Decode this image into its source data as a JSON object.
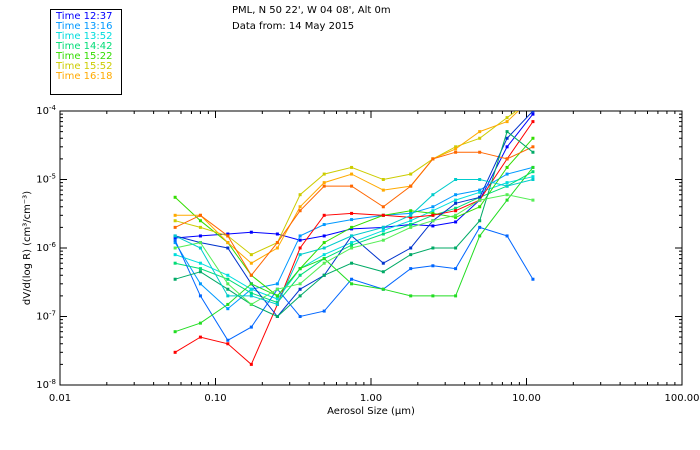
{
  "header": {
    "location": "PML, N 50 22', W 04 08', Alt 0m",
    "date_line": "Data from: 14 May 2015"
  },
  "chart_data": {
    "type": "line",
    "xscale": "log",
    "yscale": "log",
    "xlabel": "Aerosol Size (µm)",
    "ylabel": "dV/d(log R) (cm³/cm⁻³)",
    "xlim": [
      0.01,
      100
    ],
    "ylim": [
      1e-08,
      0.0001
    ],
    "x_ticks": [
      {
        "value": 0.01,
        "label": "0.01"
      },
      {
        "value": 0.1,
        "label": "0.10"
      },
      {
        "value": 1,
        "label": "1.00"
      },
      {
        "value": 10,
        "label": "10.00"
      },
      {
        "value": 100,
        "label": "100.00"
      }
    ],
    "y_ticks": [
      {
        "value": 0.0001,
        "base": "10",
        "exp": "-4"
      },
      {
        "value": 1e-05,
        "base": "10",
        "exp": "-5"
      },
      {
        "value": 1e-06,
        "base": "10",
        "exp": "-6"
      },
      {
        "value": 1e-07,
        "base": "10",
        "exp": "-7"
      },
      {
        "value": 1e-08,
        "base": "10",
        "exp": "-8"
      }
    ],
    "x": [
      0.055,
      0.08,
      0.12,
      0.17,
      0.25,
      0.35,
      0.5,
      0.75,
      1.2,
      1.8,
      2.5,
      3.5,
      5,
      7.5,
      11
    ],
    "series": [
      {
        "name": "Time 12:37",
        "color": "#0000ff",
        "values": [
          1.4e-06,
          1.5e-06,
          1.6e-06,
          1.7e-06,
          1.6e-06,
          1.3e-06,
          1.5e-06,
          1.9e-06,
          2e-06,
          2.2e-06,
          2.1e-06,
          2.4e-06,
          5e-06,
          3e-05,
          9e-05
        ]
      },
      {
        "name": "Time 13:16",
        "color": "#0099ff",
        "values": [
          1.2e-06,
          3e-07,
          1.3e-07,
          2.5e-07,
          3e-07,
          1.5e-06,
          2.2e-06,
          2.6e-06,
          3e-06,
          3.2e-06,
          4e-06,
          6e-06,
          7e-06,
          1.2e-05,
          1.5e-05
        ]
      },
      {
        "name": "Time 13:52",
        "color": "#00dddd",
        "values": [
          8e-07,
          6e-07,
          4e-07,
          2.5e-07,
          1.8e-07,
          5e-07,
          8e-07,
          1.2e-06,
          1.8e-06,
          2.5e-06,
          3.5e-06,
          5e-06,
          6.5e-06,
          9e-06,
          1.1e-05
        ]
      },
      {
        "name": "Time 14:42",
        "color": "#00dd77",
        "values": [
          6e-07,
          5e-07,
          3.5e-07,
          2.2e-07,
          1.6e-07,
          4e-07,
          7e-07,
          1.1e-06,
          1.6e-06,
          2.2e-06,
          3e-06,
          3.8e-06,
          5.5e-06,
          8e-06,
          1.3e-05
        ]
      },
      {
        "name": "Time 15:22",
        "color": "#33dd00",
        "values": [
          5.5e-06,
          2.5e-06,
          1.2e-06,
          4e-07,
          2e-07,
          5e-07,
          1.2e-06,
          2e-06,
          3e-06,
          3.5e-06,
          3.2e-06,
          2.8e-06,
          4e-06,
          1.5e-05,
          4e-05
        ]
      },
      {
        "name": "Time 15:52",
        "color": "#cccc00",
        "values": [
          2.5e-06,
          2e-06,
          1.5e-06,
          8e-07,
          1.2e-06,
          6e-06,
          1.2e-05,
          1.5e-05,
          1e-05,
          1.2e-05,
          2e-05,
          3e-05,
          4e-05,
          8e-05,
          0.00015
        ]
      },
      {
        "name": "Time 16:18",
        "color": "#ffaa00",
        "values": [
          3e-06,
          3e-06,
          1.2e-06,
          6e-07,
          1e-06,
          4e-06,
          9e-06,
          1.2e-05,
          7e-06,
          8e-06,
          2e-05,
          2.8e-05,
          5e-05,
          7e-05,
          0.00016
        ]
      },
      {
        "name": "",
        "color": "#ff0000",
        "values": [
          3e-08,
          5e-08,
          4e-08,
          2e-08,
          1.5e-07,
          1e-06,
          3e-06,
          3.2e-06,
          3e-06,
          2.8e-06,
          3e-06,
          3.5e-06,
          5e-06,
          2e-05,
          7e-05
        ]
      },
      {
        "name": "",
        "color": "#ff6600",
        "values": [
          2e-06,
          3e-06,
          1.5e-06,
          4e-07,
          1.2e-06,
          3.5e-06,
          8e-06,
          8e-06,
          4e-06,
          8e-06,
          2e-05,
          2.5e-05,
          2.5e-05,
          2e-05,
          3e-05
        ]
      },
      {
        "name": "",
        "color": "#0033cc",
        "values": [
          1.5e-06,
          1.2e-06,
          1e-06,
          3e-07,
          1e-07,
          2.5e-07,
          4e-07,
          1.5e-06,
          6e-07,
          1e-06,
          2.5e-06,
          4.5e-06,
          5.5e-06,
          4e-05,
          0.0001
        ]
      },
      {
        "name": "",
        "color": "#0066ff",
        "values": [
          1.3e-06,
          2e-07,
          4.5e-08,
          7e-08,
          2.5e-07,
          1e-07,
          1.2e-07,
          3.5e-07,
          2.5e-07,
          5e-07,
          5.5e-07,
          5e-07,
          2e-06,
          1.5e-06,
          3.5e-07
        ]
      },
      {
        "name": "",
        "color": "#00aa66",
        "values": [
          3.5e-07,
          4.5e-07,
          2.5e-07,
          1.5e-07,
          1e-07,
          2e-07,
          4e-07,
          6e-07,
          4.5e-07,
          8e-07,
          1e-06,
          1e-06,
          2.5e-06,
          5e-05,
          2.5e-05
        ]
      },
      {
        "name": "",
        "color": "#22dd22",
        "values": [
          6e-08,
          8e-08,
          1.5e-07,
          3e-07,
          2e-07,
          5e-07,
          7e-07,
          3e-07,
          2.5e-07,
          2e-07,
          2e-07,
          2e-07,
          1.5e-06,
          5e-06,
          1.5e-05
        ]
      },
      {
        "name": "",
        "color": "#55ee55",
        "values": [
          1e-06,
          1.2e-06,
          3e-07,
          1.5e-07,
          2.5e-07,
          3e-07,
          6e-07,
          1e-06,
          1.3e-06,
          2e-06,
          2.5e-06,
          3e-06,
          5e-06,
          6e-06,
          5e-06
        ]
      },
      {
        "name": "",
        "color": "#00cccc",
        "values": [
          1.5e-06,
          1e-06,
          2e-07,
          2e-07,
          1.5e-07,
          8e-07,
          1e-06,
          1.5e-06,
          2e-06,
          3e-06,
          6e-06,
          1e-05,
          1e-05,
          8e-06,
          1e-05
        ]
      }
    ]
  }
}
